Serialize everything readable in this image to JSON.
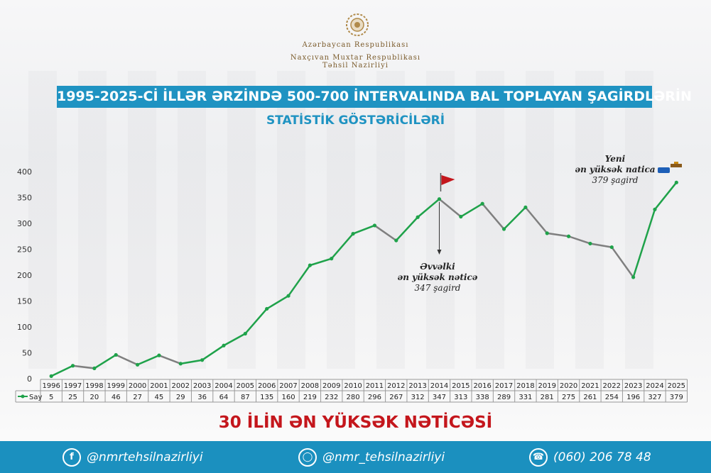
{
  "header": {
    "line1": "Azərbaycan Respublikası",
    "line2": "Naxçıvan Muxtar Respublikası",
    "line3": "Təhsil Nazirliyi"
  },
  "title": "1995-2025-Cİ İLLƏR ƏRZİNDƏ 500-700 İNTERVALINDA BAL TOPLAYAN ŞAGİRDLƏRİN",
  "subtitle": "STATİSTİK GÖSTƏRİCİLƏRİ",
  "annotations": {
    "previous": {
      "line1": "Əvvəlki",
      "line2": "ən yüksək nəticə",
      "line3": "347 şagird"
    },
    "new": {
      "line1": "Yeni",
      "line2": "ən yüksək natica",
      "line3": "379 şagird"
    }
  },
  "bottom_title": "30 İLİN ƏN YÜKSƏK NƏTİCƏSİ",
  "footer": {
    "facebook": "@nmrtehsilnazirliyi",
    "instagram": "@nmr_tehsilnazirliyi",
    "phone": "(060) 206 78 48",
    "facebook_icon": "facebook-icon",
    "instagram_icon": "instagram-icon",
    "phone_icon": "whatsapp-icon"
  },
  "colors": {
    "accent": "#1f93c2",
    "line_up": "#1fa24a",
    "line_down": "#7f7f7f",
    "highlight": "#c4161c"
  },
  "chart_data": {
    "type": "line",
    "categories": [
      "1996",
      "1997",
      "1998",
      "1999",
      "2000",
      "2001",
      "2002",
      "2003",
      "2004",
      "2005",
      "2006",
      "2007",
      "2008",
      "2009",
      "2010",
      "2011",
      "2012",
      "2013",
      "2014",
      "2015",
      "2016",
      "2017",
      "2018",
      "2019",
      "2020",
      "2021",
      "2022",
      "2023",
      "2024",
      "2025"
    ],
    "series": [
      {
        "name": "Say",
        "values": [
          5,
          25,
          20,
          46,
          27,
          45,
          29,
          36,
          64,
          87,
          135,
          160,
          219,
          232,
          280,
          296,
          267,
          312,
          347,
          313,
          338,
          289,
          331,
          281,
          275,
          261,
          254,
          196,
          327,
          379
        ]
      }
    ],
    "ylim": [
      0,
      400
    ],
    "yticks": [
      0,
      50,
      100,
      150,
      200,
      250,
      300,
      350,
      400
    ],
    "grid": false,
    "legend": "data-table-left"
  }
}
